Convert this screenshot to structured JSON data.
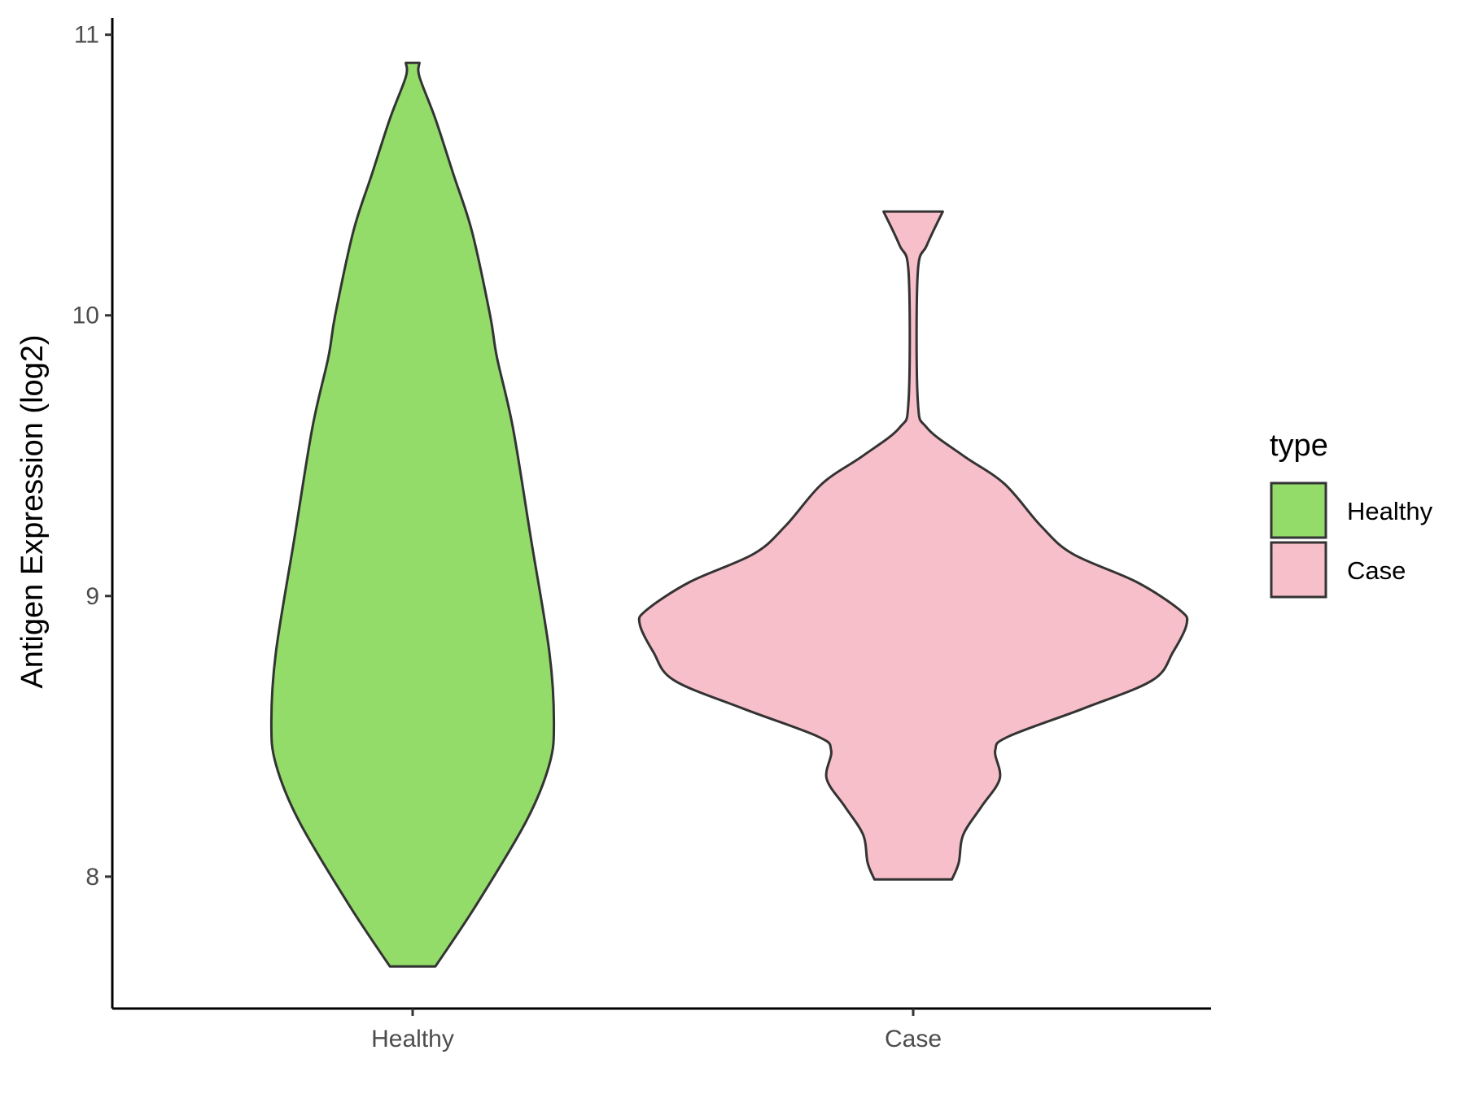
{
  "chart_data": {
    "type": "violin",
    "ylabel": "Antigen Expression (log2)",
    "xlabel": "",
    "categories": [
      "Healthy",
      "Case"
    ],
    "ylim": [
      7.53,
      11.06
    ],
    "yticks": [
      8,
      9,
      10,
      11
    ],
    "grid": false,
    "legend": {
      "title": "type",
      "position": "right",
      "entries": [
        "Healthy",
        "Case"
      ]
    },
    "series": [
      {
        "name": "Healthy",
        "color": "#93dc6a",
        "min": 7.68,
        "max": 10.9,
        "profile": [
          [
            7.68,
            0.1
          ],
          [
            7.9,
            0.28
          ],
          [
            8.2,
            0.5
          ],
          [
            8.4,
            0.6
          ],
          [
            8.55,
            0.62
          ],
          [
            8.8,
            0.6
          ],
          [
            9.2,
            0.52
          ],
          [
            9.6,
            0.44
          ],
          [
            9.85,
            0.37
          ],
          [
            10.0,
            0.34
          ],
          [
            10.3,
            0.26
          ],
          [
            10.5,
            0.18
          ],
          [
            10.7,
            0.1
          ],
          [
            10.85,
            0.03
          ],
          [
            10.9,
            0.03
          ]
        ]
      },
      {
        "name": "Case",
        "color": "#f7bfca",
        "min": 7.99,
        "max": 10.37,
        "profile": [
          [
            7.99,
            0.17
          ],
          [
            8.05,
            0.2
          ],
          [
            8.15,
            0.22
          ],
          [
            8.25,
            0.3
          ],
          [
            8.35,
            0.38
          ],
          [
            8.45,
            0.36
          ],
          [
            8.5,
            0.42
          ],
          [
            8.6,
            0.75
          ],
          [
            8.7,
            1.05
          ],
          [
            8.8,
            1.14
          ],
          [
            8.9,
            1.2
          ],
          [
            8.95,
            1.17
          ],
          [
            9.05,
            0.98
          ],
          [
            9.15,
            0.7
          ],
          [
            9.25,
            0.56
          ],
          [
            9.4,
            0.4
          ],
          [
            9.5,
            0.22
          ],
          [
            9.6,
            0.06
          ],
          [
            9.7,
            0.02
          ],
          [
            10.15,
            0.02
          ],
          [
            10.25,
            0.06
          ],
          [
            10.37,
            0.13
          ]
        ]
      }
    ]
  }
}
